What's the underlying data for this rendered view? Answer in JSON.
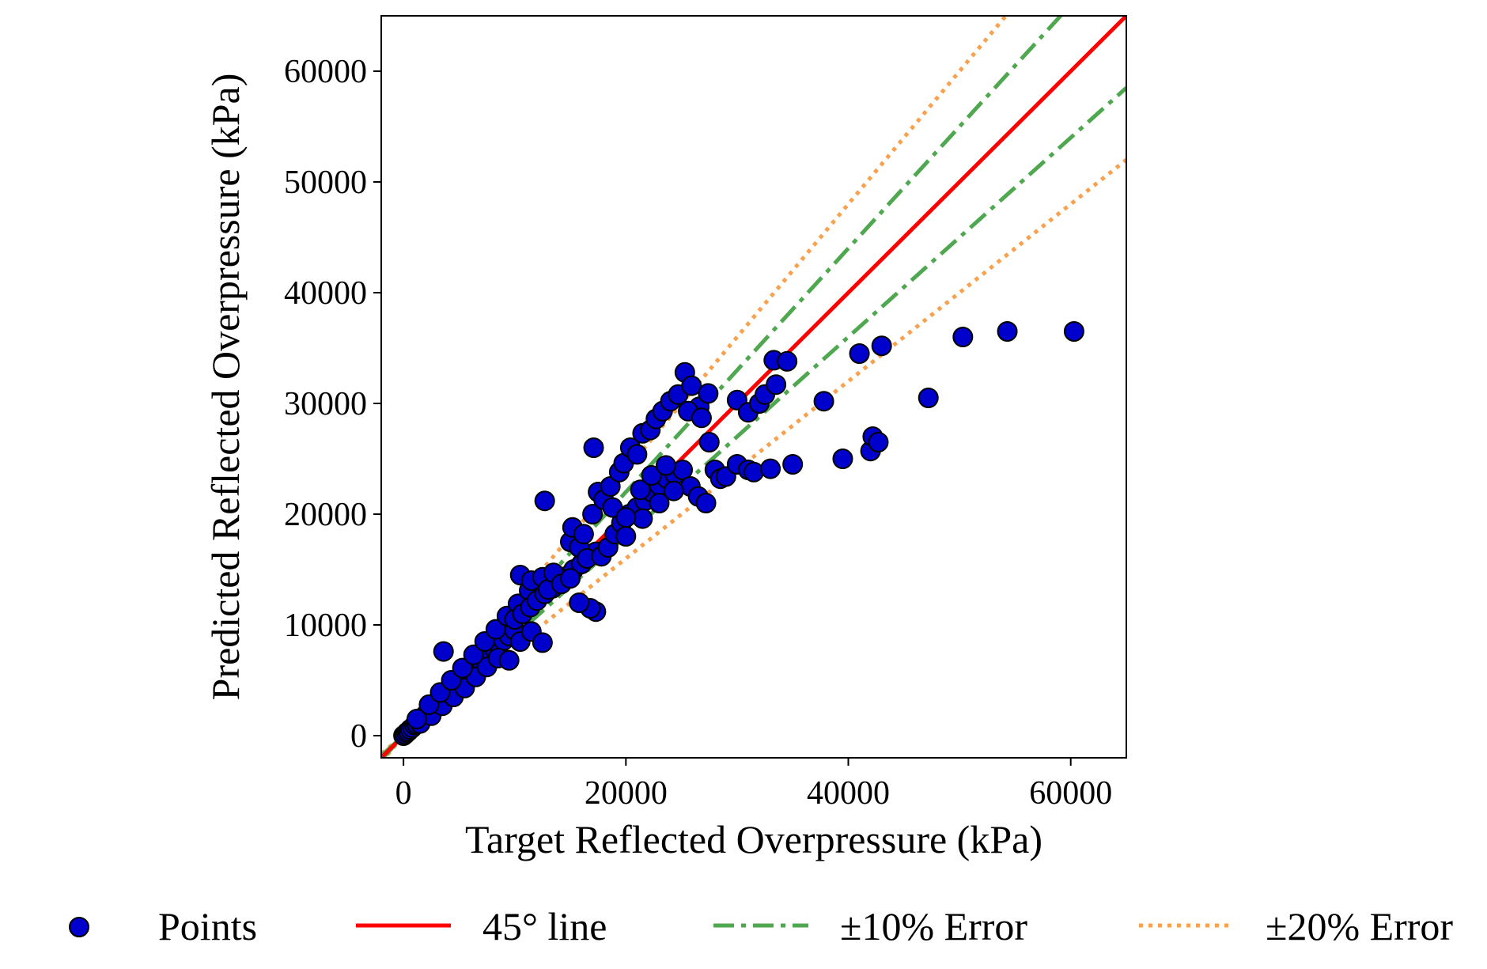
{
  "chart_data": {
    "type": "scatter",
    "title": "",
    "xlabel": "Target Reflected Overpressure (kPa)",
    "ylabel": "Predicted Reflected Overpressure (kPa)",
    "xlim": [
      -2000,
      65000
    ],
    "ylim": [
      -2000,
      65000
    ],
    "xticks": [
      0,
      20000,
      40000,
      60000
    ],
    "yticks": [
      0,
      10000,
      20000,
      30000,
      40000,
      50000,
      60000
    ],
    "xtick_labels": [
      "0",
      "20000",
      "40000",
      "60000"
    ],
    "ytick_labels": [
      "0",
      "10000",
      "20000",
      "30000",
      "40000",
      "50000",
      "60000"
    ],
    "grid": false,
    "legend_placement": "bottom",
    "series": [
      {
        "name": "Points",
        "kind": "scatter",
        "color": "#0000cc",
        "edgecolor": "#000000",
        "points": [
          [
            0,
            0
          ],
          [
            150,
            120
          ],
          [
            300,
            280
          ],
          [
            450,
            400
          ],
          [
            600,
            560
          ],
          [
            800,
            720
          ],
          [
            1000,
            950
          ],
          [
            1200,
            1050
          ],
          [
            1400,
            1350
          ],
          [
            1600,
            1500
          ],
          [
            1800,
            1700
          ],
          [
            2000,
            1900
          ],
          [
            2200,
            2100
          ],
          [
            2500,
            2300
          ],
          [
            2700,
            2600
          ],
          [
            3000,
            2800
          ],
          [
            3200,
            3100
          ],
          [
            3500,
            3300
          ],
          [
            3700,
            3600
          ],
          [
            4000,
            3800
          ],
          [
            4300,
            4100
          ],
          [
            4600,
            4300
          ],
          [
            5000,
            4700
          ],
          [
            5300,
            5000
          ],
          [
            5600,
            5400
          ],
          [
            6000,
            5700
          ],
          [
            6300,
            6000
          ],
          [
            6700,
            6300
          ],
          [
            7000,
            6700
          ],
          [
            7400,
            7000
          ],
          [
            7800,
            7400
          ],
          [
            8200,
            7800
          ],
          [
            8600,
            8200
          ],
          [
            9000,
            8600
          ],
          [
            9500,
            9000
          ],
          [
            10000,
            9500
          ],
          [
            1500,
            1100
          ],
          [
            2500,
            1800
          ],
          [
            3500,
            2700
          ],
          [
            4500,
            3500
          ],
          [
            5500,
            4300
          ],
          [
            6500,
            5300
          ],
          [
            7500,
            6200
          ],
          [
            8500,
            7000
          ],
          [
            9500,
            6800
          ],
          [
            10500,
            8500
          ],
          [
            11500,
            9400
          ],
          [
            12500,
            8400
          ],
          [
            1200,
            1500
          ],
          [
            2300,
            2800
          ],
          [
            3300,
            3900
          ],
          [
            4300,
            5000
          ],
          [
            5300,
            6100
          ],
          [
            6300,
            7300
          ],
          [
            7300,
            8500
          ],
          [
            8300,
            9600
          ],
          [
            9300,
            10800
          ],
          [
            10300,
            11900
          ],
          [
            11300,
            13100
          ],
          [
            3600,
            7600
          ],
          [
            10000,
            10500
          ],
          [
            10700,
            11000
          ],
          [
            11400,
            11600
          ],
          [
            12000,
            12200
          ],
          [
            12700,
            12800
          ],
          [
            13400,
            13300
          ],
          [
            14000,
            13900
          ],
          [
            14700,
            14400
          ],
          [
            15300,
            15000
          ],
          [
            16000,
            15500
          ],
          [
            16600,
            16100
          ],
          [
            17300,
            16600
          ],
          [
            10500,
            14500
          ],
          [
            11500,
            14000
          ],
          [
            12500,
            14300
          ],
          [
            13000,
            13200
          ],
          [
            13500,
            14700
          ],
          [
            14200,
            13700
          ],
          [
            15000,
            17500
          ],
          [
            15800,
            17000
          ],
          [
            16500,
            16000
          ],
          [
            15200,
            18800
          ],
          [
            16200,
            18200
          ],
          [
            17000,
            20000
          ],
          [
            12700,
            21200
          ],
          [
            17100,
            26000
          ],
          [
            17300,
            11200
          ],
          [
            16800,
            11500
          ],
          [
            15800,
            12000
          ],
          [
            15000,
            14200
          ],
          [
            17500,
            22000
          ],
          [
            18000,
            21300
          ],
          [
            18600,
            22500
          ],
          [
            19400,
            23800
          ],
          [
            19800,
            24600
          ],
          [
            20400,
            26000
          ],
          [
            21000,
            25400
          ],
          [
            21500,
            27300
          ],
          [
            22200,
            27600
          ],
          [
            22700,
            28600
          ],
          [
            23300,
            29300
          ],
          [
            24000,
            30200
          ],
          [
            24700,
            30800
          ],
          [
            25300,
            32800
          ],
          [
            25900,
            31600
          ],
          [
            26600,
            29700
          ],
          [
            27400,
            30900
          ],
          [
            25600,
            29300
          ],
          [
            26800,
            28700
          ],
          [
            27500,
            26500
          ],
          [
            17800,
            16200
          ],
          [
            18400,
            17000
          ],
          [
            19000,
            18200
          ],
          [
            19600,
            19200
          ],
          [
            20300,
            20000
          ],
          [
            21000,
            20600
          ],
          [
            21700,
            21200
          ],
          [
            22300,
            22000
          ],
          [
            23000,
            22600
          ],
          [
            23700,
            23200
          ],
          [
            24400,
            23600
          ],
          [
            25100,
            24000
          ],
          [
            25800,
            22500
          ],
          [
            26500,
            21600
          ],
          [
            27200,
            21000
          ],
          [
            20000,
            18000
          ],
          [
            21500,
            19600
          ],
          [
            23000,
            21000
          ],
          [
            18800,
            20600
          ],
          [
            20000,
            19700
          ],
          [
            21300,
            22200
          ],
          [
            22300,
            23500
          ],
          [
            23600,
            24400
          ],
          [
            24300,
            22100
          ],
          [
            28000,
            24000
          ],
          [
            28500,
            23200
          ],
          [
            29000,
            23400
          ],
          [
            30000,
            24500
          ],
          [
            31000,
            24000
          ],
          [
            31500,
            23800
          ],
          [
            30000,
            30300
          ],
          [
            31000,
            29200
          ],
          [
            32000,
            30000
          ],
          [
            32500,
            30800
          ],
          [
            33500,
            31700
          ],
          [
            33300,
            33900
          ],
          [
            34500,
            33800
          ],
          [
            35000,
            24500
          ],
          [
            33000,
            24100
          ],
          [
            37800,
            30200
          ],
          [
            39500,
            25000
          ],
          [
            41000,
            34500
          ],
          [
            42000,
            25700
          ],
          [
            42200,
            27000
          ],
          [
            42700,
            26500
          ],
          [
            43000,
            35200
          ],
          [
            47200,
            30500
          ],
          [
            50300,
            36000
          ],
          [
            54300,
            36500
          ],
          [
            60300,
            36500
          ]
        ]
      },
      {
        "name": "45° line",
        "kind": "line",
        "slope": 1.0,
        "color": "#ff0000",
        "style": "solid"
      },
      {
        "name": "±10% Error",
        "kind": "line",
        "slopes": [
          1.1,
          0.9
        ],
        "color": "#4fa84f",
        "style": "dashdot"
      },
      {
        "name": "±20% Error",
        "kind": "line",
        "slopes": [
          1.2,
          0.8
        ],
        "color": "#f8a14e",
        "style": "dotted"
      }
    ]
  }
}
